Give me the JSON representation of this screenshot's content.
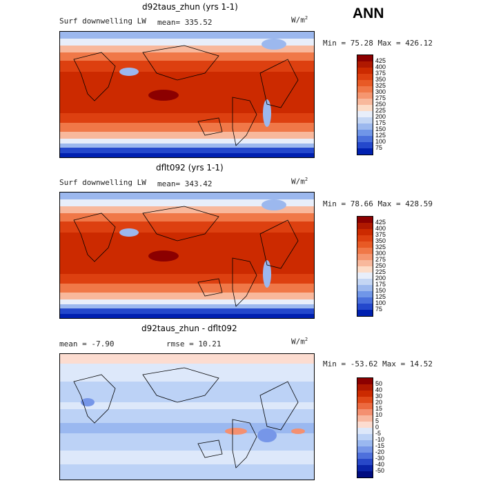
{
  "header": {
    "season": "ANN"
  },
  "panels": [
    {
      "title": "d92taus_zhun (yrs 1-1)",
      "left_label": "Surf downwelling LW",
      "center_label": "mean= 335.52",
      "unit_base": "W/m",
      "unit_exp": "2",
      "range": "Min =  75.28 Max = 426.12",
      "kind": "abs"
    },
    {
      "title": "dflt092 (yrs 1-1)",
      "left_label": "Surf downwelling LW",
      "center_label": "mean= 343.42",
      "unit_base": "W/m",
      "unit_exp": "2",
      "range": "Min =  78.66 Max = 428.59",
      "kind": "abs"
    },
    {
      "title": "d92taus_zhun - dflt092",
      "left_label": "mean =  -7.90",
      "center_label": "rmse =  10.21",
      "unit_base": "W/m",
      "unit_exp": "2",
      "range": "Min = -53.62 Max =  14.52",
      "kind": "diff"
    }
  ],
  "colorbars": {
    "abs": {
      "labels": [
        "425",
        "400",
        "375",
        "350",
        "325",
        "300",
        "275",
        "250",
        "225",
        "200",
        "175",
        "150",
        "125",
        "100",
        "75"
      ],
      "colors": [
        "#8c0000",
        "#b01800",
        "#cc2a00",
        "#dd4010",
        "#e85a25",
        "#f07848",
        "#f59670",
        "#f8b89c",
        "#fcdcc8",
        "#e8eefa",
        "#c4d6f4",
        "#9cb8ee",
        "#7096e8",
        "#4a70dc",
        "#2448cc",
        "#0020b0"
      ]
    },
    "diff": {
      "labels": [
        "50",
        "40",
        "30",
        "20",
        "15",
        "10",
        "5",
        "0",
        "-5",
        "-10",
        "-15",
        "-20",
        "-30",
        "-40",
        "-50"
      ],
      "colors": [
        "#8c0000",
        "#b01800",
        "#cc2a00",
        "#e04818",
        "#ec6a40",
        "#f49070",
        "#f8b8a0",
        "#fcdcd0",
        "#dde8fa",
        "#bcd2f6",
        "#9ab8f0",
        "#7696e8",
        "#4e70dc",
        "#2848c8",
        "#0a24a8",
        "#000c80"
      ]
    }
  }
}
